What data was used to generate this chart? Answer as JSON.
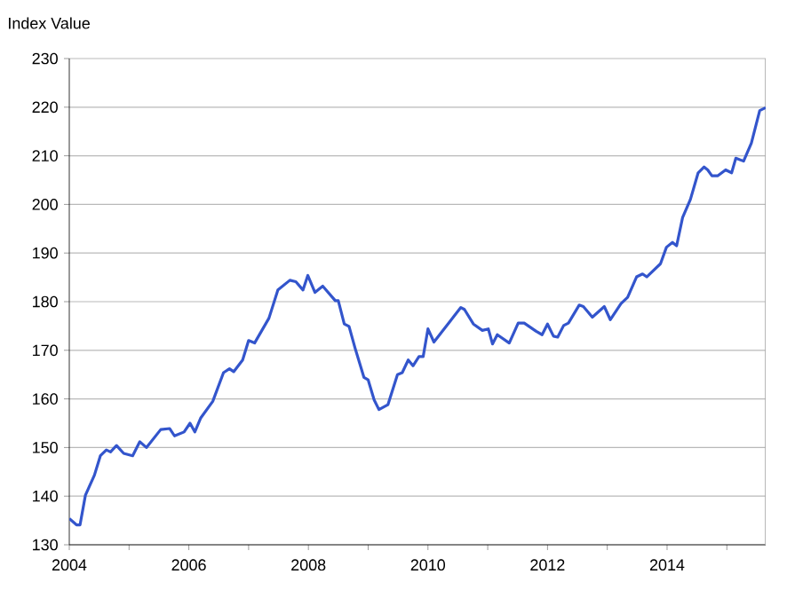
{
  "chart_data": {
    "type": "line",
    "ylabel": "Index Value",
    "x": [
      2004.0,
      2004.12,
      2004.18,
      2004.27,
      2004.42,
      2004.52,
      2004.62,
      2004.69,
      2004.79,
      2004.91,
      2005.06,
      2005.18,
      2005.29,
      2005.53,
      2005.68,
      2005.76,
      2005.92,
      2006.02,
      2006.1,
      2006.2,
      2006.4,
      2006.58,
      2006.68,
      2006.75,
      2006.9,
      2007.0,
      2007.1,
      2007.34,
      2007.49,
      2007.69,
      2007.79,
      2007.91,
      2007.99,
      2008.11,
      2008.24,
      2008.45,
      2008.5,
      2008.6,
      2008.68,
      2008.78,
      2008.93,
      2009.0,
      2009.1,
      2009.18,
      2009.33,
      2009.49,
      2009.57,
      2009.67,
      2009.75,
      2009.85,
      2009.92,
      2010.0,
      2010.1,
      2010.55,
      2010.61,
      2010.76,
      2010.91,
      2011.01,
      2011.08,
      2011.16,
      2011.36,
      2011.51,
      2011.61,
      2011.81,
      2011.91,
      2012.0,
      2012.1,
      2012.17,
      2012.27,
      2012.35,
      2012.53,
      2012.6,
      2012.75,
      2012.95,
      2013.05,
      2013.23,
      2013.34,
      2013.49,
      2013.59,
      2013.66,
      2013.89,
      2013.99,
      2014.09,
      2014.16,
      2014.26,
      2014.39,
      2014.52,
      2014.62,
      2014.68,
      2014.75,
      2014.85,
      2014.98,
      2015.08,
      2015.15,
      2015.28,
      2015.41,
      2015.55,
      2015.65
    ],
    "series": [
      {
        "color": "#3355cc",
        "values": [
          135.4,
          134.1,
          134.1,
          140.2,
          144.3,
          148.3,
          149.5,
          149.1,
          150.4,
          148.8,
          148.3,
          151.2,
          150.0,
          153.7,
          153.9,
          152.4,
          153.2,
          155.0,
          153.2,
          156.1,
          159.5,
          165.4,
          166.2,
          165.6,
          168.0,
          172.0,
          171.5,
          176.6,
          182.4,
          184.4,
          184.1,
          182.4,
          185.4,
          181.9,
          183.2,
          180.2,
          180.2,
          175.4,
          174.9,
          170.5,
          164.4,
          163.9,
          159.8,
          157.8,
          158.8,
          165.0,
          165.4,
          168.0,
          166.8,
          168.7,
          168.7,
          174.4,
          171.7,
          178.8,
          178.4,
          175.4,
          174.1,
          174.4,
          171.3,
          173.2,
          171.5,
          175.6,
          175.6,
          173.9,
          173.2,
          175.4,
          172.9,
          172.7,
          175.1,
          175.6,
          179.3,
          179.0,
          176.8,
          179.0,
          176.3,
          179.6,
          180.9,
          185.1,
          185.7,
          185.1,
          187.8,
          191.2,
          192.2,
          191.5,
          197.3,
          201.0,
          206.5,
          207.7,
          207.1,
          205.9,
          205.9,
          207.1,
          206.5,
          209.5,
          208.9,
          212.6,
          219.3,
          219.9
        ]
      }
    ],
    "xlim": [
      2004,
      2015.65
    ],
    "xticks": [
      2004,
      {
        "value": 2005,
        "label": null
      },
      2006,
      {
        "value": 2007,
        "label": null
      },
      2008,
      {
        "value": 2009,
        "label": null
      },
      2010,
      {
        "value": 2011,
        "label": null
      },
      2012,
      {
        "value": 2013,
        "label": null
      },
      2014,
      {
        "value": 2015,
        "label": null
      }
    ],
    "ylim": [
      130,
      230
    ],
    "yticks": [
      130,
      140,
      150,
      160,
      170,
      180,
      190,
      200,
      210,
      220,
      230
    ],
    "grid": "y",
    "marker": "none",
    "line_style": "solid"
  }
}
